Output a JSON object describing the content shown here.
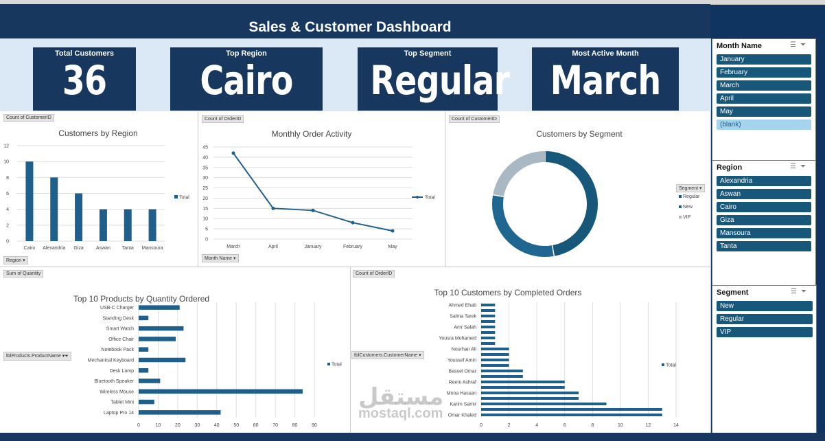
{
  "dashboard_title": "Sales & Customer  Dashboard",
  "kpis": [
    {
      "label": "Total Customers",
      "value": "36"
    },
    {
      "label": "Top Region",
      "value": "Cairo"
    },
    {
      "label": "Top Segment",
      "value": "Regular"
    },
    {
      "label": "Most Active Month",
      "value": "March"
    }
  ],
  "chart_data": [
    {
      "type": "bar",
      "title": "Customers by Region",
      "field_button": "Count of CustomerID",
      "axis_field": "Region",
      "categories": [
        "Cairo",
        "Alexandria",
        "Giza",
        "Aswan",
        "Tanta",
        "Mansoura"
      ],
      "series": [
        {
          "name": "Total",
          "values": [
            10,
            8,
            6,
            4,
            4,
            4
          ]
        }
      ],
      "ylim": [
        0,
        12
      ],
      "yticks": [
        "0",
        "2",
        "4",
        "6",
        "8",
        "10",
        "12"
      ],
      "color": "#1f5f8b",
      "legend": "right"
    },
    {
      "type": "line",
      "title": "Monthly Order Activity",
      "field_button": "Count of OrderID",
      "axis_field": "Month Name",
      "categories": [
        "March",
        "April",
        "January",
        "February",
        "May"
      ],
      "series": [
        {
          "name": "Total",
          "values": [
            42,
            15,
            14,
            8,
            4
          ]
        }
      ],
      "ylim": [
        0,
        45
      ],
      "yticks": [
        "0",
        "5",
        "10",
        "15",
        "20",
        "25",
        "30",
        "35",
        "40",
        "45"
      ],
      "color": "#1f5f8b",
      "legend": "right"
    },
    {
      "type": "pie",
      "title": "Customers by Segment",
      "field_button": "Count of CustomerID",
      "legend_field": "Segment",
      "categories": [
        "Regular",
        "New",
        "VIP"
      ],
      "values": [
        17,
        11,
        8
      ],
      "colors": [
        "#17587a",
        "#1f6791",
        "#aab8c4"
      ],
      "legend": "right"
    },
    {
      "type": "bar",
      "orientation": "horizontal",
      "title": "Top 10 Products by Quantity Ordered",
      "field_button": "Sum of Quantity",
      "axis_field": "tblProducts.ProductName",
      "categories": [
        "USB-C Charger",
        "Standing Desk",
        "Smart Watch",
        "Office Chair",
        "Notebook Pack",
        "Mechanical Keyboard",
        "Desk Lamp",
        "Bluetooth Speaker",
        "Wireless  Mouse",
        "Tablet Mini",
        "Laptop Pro 14"
      ],
      "series": [
        {
          "name": "Total",
          "values": [
            21,
            5,
            23,
            19,
            5,
            24,
            5,
            11,
            84,
            8,
            42
          ]
        }
      ],
      "xlim": [
        0,
        90
      ],
      "xticks": [
        "0",
        "10",
        "20",
        "30",
        "40",
        "50",
        "60",
        "70",
        "80",
        "90"
      ],
      "color": "#1f5f8b",
      "legend": "right"
    },
    {
      "type": "bar",
      "orientation": "horizontal",
      "title": "Top 10 Customers by Completed Orders",
      "field_button": "Count of OrderID",
      "axis_field": "tblCustomers.CustomerName",
      "categories": [
        "Ahmed Ehab",
        "",
        "Salma Tarek",
        "",
        "Amr Salah",
        "",
        "Yousra Mohamed",
        "",
        "Nourhan Ali",
        "",
        "Youssef Amin",
        "",
        "Bassel Omar",
        "",
        "Reem Ashraf",
        "",
        "Mona Hassan",
        "",
        "Karim Samir",
        "",
        "Omar Khaled"
      ],
      "series": [
        {
          "name": "Total",
          "values": [
            1,
            1,
            1,
            1,
            1,
            1,
            1,
            1,
            2,
            2,
            2,
            2,
            3,
            3,
            6,
            6,
            7,
            7,
            9,
            13,
            13
          ]
        }
      ],
      "xlim": [
        0,
        14
      ],
      "xticks": [
        "0",
        "2",
        "4",
        "6",
        "8",
        "10",
        "12",
        "14"
      ],
      "color": "#1f5f8b",
      "legend": "right"
    }
  ],
  "slicers": [
    {
      "title": "Month Name",
      "items": [
        "January",
        "February",
        "March",
        "April",
        "May",
        "(blank)"
      ]
    },
    {
      "title": "Region",
      "items": [
        "Alexandria",
        "Aswan",
        "Cairo",
        "Giza",
        "Mansoura",
        "Tanta"
      ]
    },
    {
      "title": "Segment",
      "items": [
        "New",
        "Regular",
        "VIP"
      ]
    }
  ],
  "slicer_icons": {
    "multi_select": "multi-select-icon",
    "clear_filter": "clear-filter-icon"
  },
  "watermark": {
    "arabic": "مستقل",
    "latin": "mostaql.com"
  }
}
